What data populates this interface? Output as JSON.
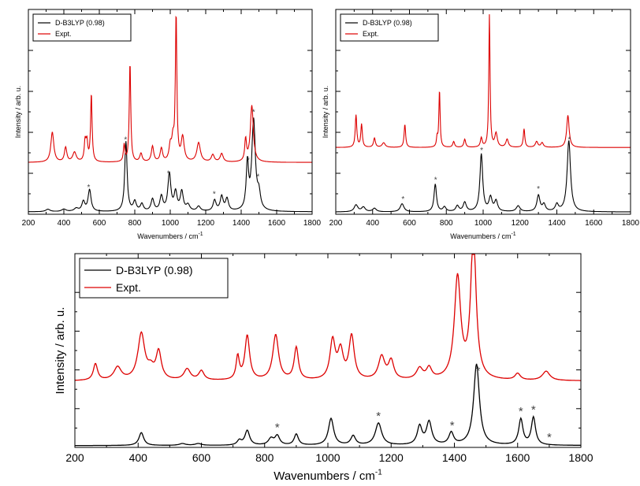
{
  "chart_data": [
    {
      "type": "line",
      "panel": "top-left",
      "xlabel": "Wavenumbers / cm",
      "xlabel_sup": "-1",
      "ylabel": "Intensity / arb. u.",
      "xlim": [
        200,
        1800
      ],
      "x_ticks": [
        "200",
        "400",
        "600",
        "800",
        "1000",
        "1200",
        "1400",
        "1600",
        "1800"
      ],
      "legend_position": "top-left",
      "series": [
        {
          "name": "D-B3LYP (0.98)",
          "color": "#000000",
          "offset": 0,
          "baseline": 0.02,
          "peaks": [
            [
              310,
              0.02,
              15
            ],
            [
              400,
              0.02,
              15
            ],
            [
              470,
              0.025,
              15
            ],
            [
              510,
              0.08,
              10
            ],
            [
              545,
              0.18,
              10
            ],
            [
              750,
              0.58,
              8
            ],
            [
              800,
              0.08,
              10
            ],
            [
              840,
              0.06,
              10
            ],
            [
              900,
              0.1,
              10
            ],
            [
              950,
              0.12,
              10
            ],
            [
              995,
              0.31,
              10
            ],
            [
              1030,
              0.15,
              10
            ],
            [
              1065,
              0.16,
              10
            ],
            [
              1100,
              0.05,
              12
            ],
            [
              1160,
              0.04,
              12
            ],
            [
              1250,
              0.09,
              10
            ],
            [
              1290,
              0.12,
              10
            ],
            [
              1320,
              0.1,
              10
            ],
            [
              1435,
              0.38,
              8
            ],
            [
              1470,
              0.75,
              12
            ],
            [
              1500,
              0.12,
              10
            ]
          ]
        },
        {
          "name": "Expt.",
          "color": "#dd0000",
          "offset": 0.43,
          "baseline": 0.0,
          "peaks": [
            [
              335,
              0.25,
              10
            ],
            [
              410,
              0.12,
              8
            ],
            [
              460,
              0.08,
              12
            ],
            [
              520,
              0.16,
              6
            ],
            [
              530,
              0.15,
              6
            ],
            [
              555,
              0.56,
              5
            ],
            [
              740,
              0.14,
              5
            ],
            [
              773,
              0.82,
              5
            ],
            [
              835,
              0.07,
              8
            ],
            [
              900,
              0.13,
              8
            ],
            [
              950,
              0.11,
              8
            ],
            [
              1000,
              0.12,
              8
            ],
            [
              1015,
              0.16,
              8
            ],
            [
              1033,
              1.2,
              5
            ],
            [
              1070,
              0.2,
              10
            ],
            [
              1160,
              0.16,
              12
            ],
            [
              1240,
              0.06,
              10
            ],
            [
              1290,
              0.07,
              10
            ],
            [
              1425,
              0.18,
              6
            ],
            [
              1460,
              0.47,
              10
            ]
          ]
        }
      ],
      "annotations": [
        "*",
        "*",
        "*",
        "*",
        "*",
        "*",
        "*"
      ],
      "annotation_x": [
        540,
        748,
        990,
        1248,
        1440,
        1470,
        1495
      ]
    },
    {
      "type": "line",
      "panel": "top-right",
      "xlabel": "Wavenumbers / cm",
      "xlabel_sup": "-1",
      "ylabel": "Intensity / arb. u.",
      "xlim": [
        200,
        1800
      ],
      "x_ticks": [
        "200",
        "400",
        "600",
        "800",
        "1000",
        "1200",
        "1400",
        "1600",
        "1800"
      ],
      "legend_position": "top-left",
      "series": [
        {
          "name": "D-B3LYP (0.98)",
          "color": "#000000",
          "offset": 0,
          "baseline": 0.02,
          "peaks": [
            [
              310,
              0.06,
              12
            ],
            [
              350,
              0.04,
              12
            ],
            [
              410,
              0.03,
              12
            ],
            [
              560,
              0.07,
              12
            ],
            [
              740,
              0.24,
              8
            ],
            [
              790,
              0.04,
              10
            ],
            [
              860,
              0.05,
              10
            ],
            [
              900,
              0.08,
              10
            ],
            [
              990,
              0.5,
              9
            ],
            [
              1040,
              0.12,
              10
            ],
            [
              1070,
              0.09,
              10
            ],
            [
              1190,
              0.05,
              12
            ],
            [
              1300,
              0.14,
              10
            ],
            [
              1330,
              0.06,
              10
            ],
            [
              1400,
              0.06,
              10
            ],
            [
              1465,
              0.62,
              11
            ]
          ]
        },
        {
          "name": "Expt.",
          "color": "#dd0000",
          "offset": 0.58,
          "baseline": 0.0,
          "peaks": [
            [
              310,
              0.28,
              5
            ],
            [
              340,
              0.2,
              5
            ],
            [
              410,
              0.08,
              6
            ],
            [
              460,
              0.04,
              10
            ],
            [
              575,
              0.2,
              5
            ],
            [
              750,
              0.08,
              4
            ],
            [
              763,
              0.5,
              4
            ],
            [
              840,
              0.05,
              6
            ],
            [
              900,
              0.07,
              6
            ],
            [
              990,
              0.08,
              6
            ],
            [
              1034,
              1.15,
              4
            ],
            [
              1070,
              0.12,
              8
            ],
            [
              1130,
              0.07,
              8
            ],
            [
              1222,
              0.16,
              5
            ],
            [
              1290,
              0.05,
              8
            ],
            [
              1320,
              0.04,
              8
            ],
            [
              1460,
              0.28,
              8
            ]
          ]
        }
      ],
      "annotations": [
        "*",
        "*",
        "*",
        "*",
        "*"
      ],
      "annotation_x": [
        565,
        742,
        992,
        1300,
        1468
      ]
    },
    {
      "type": "line",
      "panel": "bottom",
      "xlabel": "Wavenumbers / cm",
      "xlabel_sup": "-1",
      "ylabel": "Intensity / arb. u.",
      "xlim": [
        200,
        1800
      ],
      "x_ticks": [
        "200",
        "400",
        "600",
        "800",
        "1000",
        "1200",
        "1400",
        "1600",
        "1800"
      ],
      "legend_position": "top-left",
      "series": [
        {
          "name": "D-B3LYP (0.98)",
          "color": "#000000",
          "offset": 0,
          "baseline": 0.02,
          "peaks": [
            [
              410,
              0.14,
              9
            ],
            [
              540,
              0.02,
              12
            ],
            [
              590,
              0.02,
              12
            ],
            [
              720,
              0.05,
              8
            ],
            [
              745,
              0.16,
              9
            ],
            [
              820,
              0.07,
              10
            ],
            [
              840,
              0.1,
              9
            ],
            [
              900,
              0.12,
              8
            ],
            [
              1010,
              0.29,
              10
            ],
            [
              1080,
              0.1,
              9
            ],
            [
              1160,
              0.24,
              12
            ],
            [
              1290,
              0.2,
              9
            ],
            [
              1320,
              0.25,
              10
            ],
            [
              1390,
              0.13,
              9
            ],
            [
              1470,
              0.88,
              11
            ],
            [
              1610,
              0.28,
              8
            ],
            [
              1650,
              0.3,
              8
            ]
          ]
        },
        {
          "name": "Expt.",
          "color": "#dd0000",
          "offset": 0.72,
          "baseline": 0.0,
          "peaks": [
            [
              265,
              0.18,
              8
            ],
            [
              335,
              0.14,
              14
            ],
            [
              410,
              0.5,
              13
            ],
            [
              440,
              0.1,
              12
            ],
            [
              465,
              0.3,
              10
            ],
            [
              555,
              0.12,
              12
            ],
            [
              600,
              0.1,
              10
            ],
            [
              715,
              0.25,
              6
            ],
            [
              745,
              0.48,
              9
            ],
            [
              835,
              0.49,
              11
            ],
            [
              900,
              0.35,
              8
            ],
            [
              1015,
              0.42,
              10
            ],
            [
              1040,
              0.3,
              10
            ],
            [
              1075,
              0.47,
              10
            ],
            [
              1170,
              0.25,
              12
            ],
            [
              1200,
              0.2,
              10
            ],
            [
              1290,
              0.12,
              12
            ],
            [
              1320,
              0.12,
              10
            ],
            [
              1410,
              1.1,
              12
            ],
            [
              1460,
              1.6,
              10
            ],
            [
              1600,
              0.07,
              10
            ],
            [
              1690,
              0.1,
              14
            ]
          ]
        }
      ],
      "annotations": [
        "*",
        "*",
        "*",
        "*",
        "*",
        "*",
        "*"
      ],
      "annotation_x": [
        840,
        1160,
        1393,
        1475,
        1610,
        1650,
        1700
      ]
    }
  ]
}
